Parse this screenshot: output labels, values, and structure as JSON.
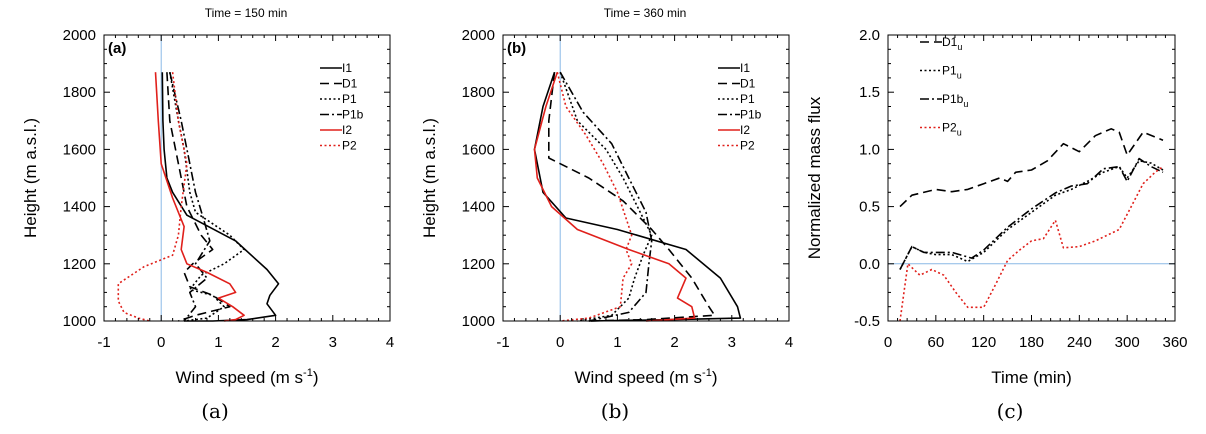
{
  "captions": [
    "(a)",
    "(b)",
    "(c)"
  ],
  "chart_data": [
    {
      "type": "line",
      "title": "Time = 150 min",
      "panel_label": "(a)",
      "xlabel": "Wind speed (m s",
      "xlabel_sup": "-1",
      "xlabel_tail": ")",
      "ylabel": "Height (m a.s.l.)",
      "xlim": [
        -1,
        4
      ],
      "ylim": [
        1000,
        2000
      ],
      "xticks": [
        -1,
        0,
        1,
        2,
        3,
        4
      ],
      "yticks": [
        1000,
        1200,
        1400,
        1600,
        1800,
        2000
      ],
      "zero_line": "x=0",
      "legend_position": "top-right",
      "series": [
        {
          "name": "I1",
          "color": "#000000",
          "dash": "solid",
          "x": [
            0.02,
            0.03,
            0.05,
            0.1,
            0.2,
            0.45,
            1.3,
            1.85,
            2.05,
            1.9,
            1.85,
            2.0,
            1.5,
            0.9,
            0.4
          ],
          "y": [
            1870,
            1700,
            1600,
            1500,
            1450,
            1370,
            1280,
            1180,
            1130,
            1090,
            1060,
            1020,
            1005,
            1000,
            1000
          ]
        },
        {
          "name": "D1",
          "color": "#000000",
          "dash": "dash",
          "x": [
            0.1,
            0.15,
            0.3,
            0.45,
            0.7,
            0.9,
            0.55,
            0.4,
            0.5,
            0.9,
            1.2,
            0.6,
            0.3
          ],
          "y": [
            1870,
            1700,
            1550,
            1400,
            1300,
            1250,
            1200,
            1170,
            1120,
            1090,
            1050,
            1020,
            1000
          ]
        },
        {
          "name": "P1",
          "color": "#000000",
          "dash": "dot",
          "x": [
            0.15,
            0.3,
            0.4,
            0.5,
            0.6,
            1.2,
            1.45,
            1.1,
            0.7,
            0.5,
            0.9,
            1.1,
            0.8,
            0.4
          ],
          "y": [
            1870,
            1700,
            1600,
            1450,
            1380,
            1300,
            1250,
            1200,
            1160,
            1110,
            1090,
            1050,
            1010,
            1000
          ]
        },
        {
          "name": "P1b",
          "color": "#000000",
          "dash": "dashdot",
          "x": [
            0.15,
            0.35,
            0.5,
            0.6,
            0.75,
            0.85,
            0.6,
            0.8,
            0.5,
            0.6,
            0.4
          ],
          "y": [
            1870,
            1700,
            1550,
            1450,
            1350,
            1280,
            1200,
            1150,
            1100,
            1050,
            1000
          ]
        },
        {
          "name": "I2",
          "color": "#e0201b",
          "dash": "solid",
          "x": [
            -0.1,
            -0.05,
            0.0,
            0.2,
            0.4,
            0.35,
            0.45,
            0.8,
            1.2,
            1.3,
            1.0,
            1.25,
            1.45,
            1.3,
            1.1
          ],
          "y": [
            1870,
            1700,
            1550,
            1430,
            1330,
            1250,
            1200,
            1170,
            1130,
            1100,
            1080,
            1050,
            1020,
            1005,
            1000
          ]
        },
        {
          "name": "P2",
          "color": "#e0201b",
          "dash": "dot",
          "x": [
            0.2,
            0.3,
            0.45,
            0.35,
            0.3,
            0.2,
            -0.3,
            -0.75,
            -0.75,
            -0.65,
            -0.4,
            -0.2
          ],
          "y": [
            1870,
            1700,
            1550,
            1400,
            1300,
            1230,
            1190,
            1130,
            1070,
            1030,
            1010,
            1000
          ]
        }
      ]
    },
    {
      "type": "line",
      "title": "Time = 360 min",
      "panel_label": "(b)",
      "xlabel": "Wind speed (m s",
      "xlabel_sup": "-1",
      "xlabel_tail": ")",
      "ylabel": "Height (m a.s.l.)",
      "xlim": [
        -1,
        4
      ],
      "ylim": [
        1000,
        2000
      ],
      "xticks": [
        -1,
        0,
        1,
        2,
        3,
        4
      ],
      "yticks": [
        1000,
        1200,
        1400,
        1600,
        1800,
        2000
      ],
      "zero_line": "x=0",
      "legend_position": "top-right",
      "series": [
        {
          "name": "I1",
          "color": "#000000",
          "dash": "solid",
          "x": [
            -0.1,
            -0.3,
            -0.45,
            -0.3,
            0.1,
            1.0,
            2.2,
            2.8,
            3.1,
            3.15,
            2.0,
            0.5
          ],
          "y": [
            1870,
            1750,
            1600,
            1450,
            1360,
            1320,
            1250,
            1150,
            1050,
            1010,
            1005,
            1000
          ]
        },
        {
          "name": "D1",
          "color": "#000000",
          "dash": "dash",
          "x": [
            -0.1,
            -0.2,
            -0.2,
            0.5,
            1.1,
            1.6,
            1.9,
            2.3,
            2.6,
            2.7,
            1.5,
            0.5
          ],
          "y": [
            1870,
            1700,
            1570,
            1500,
            1420,
            1320,
            1250,
            1150,
            1050,
            1020,
            1005,
            1000
          ]
        },
        {
          "name": "P1",
          "color": "#000000",
          "dash": "dot",
          "x": [
            0.0,
            0.3,
            0.8,
            1.1,
            1.35,
            1.6,
            1.45,
            1.3,
            1.2,
            0.9,
            0.3
          ],
          "y": [
            1870,
            1700,
            1600,
            1500,
            1400,
            1300,
            1230,
            1150,
            1080,
            1020,
            1000
          ]
        },
        {
          "name": "P1b",
          "color": "#000000",
          "dash": "dashdot",
          "x": [
            0.0,
            0.4,
            0.9,
            1.2,
            1.5,
            1.6,
            1.55,
            1.5,
            1.2,
            0.5
          ],
          "y": [
            1870,
            1730,
            1620,
            1500,
            1380,
            1280,
            1200,
            1100,
            1030,
            1000
          ]
        },
        {
          "name": "I2",
          "color": "#e0201b",
          "dash": "solid",
          "x": [
            -0.05,
            -0.25,
            -0.45,
            -0.4,
            -0.15,
            0.3,
            1.2,
            1.9,
            2.2,
            2.05,
            2.3,
            2.35,
            1.5
          ],
          "y": [
            1870,
            1750,
            1600,
            1500,
            1400,
            1320,
            1250,
            1200,
            1150,
            1080,
            1050,
            1010,
            1000
          ]
        },
        {
          "name": "P2",
          "color": "#e0201b",
          "dash": "dot",
          "x": [
            -0.05,
            0.1,
            0.45,
            0.75,
            1.0,
            1.25,
            1.15,
            1.25,
            1.1,
            1.05,
            0.5,
            0.0
          ],
          "y": [
            1870,
            1750,
            1650,
            1550,
            1450,
            1300,
            1250,
            1200,
            1150,
            1050,
            1010,
            1000
          ]
        }
      ]
    },
    {
      "type": "line",
      "title": "",
      "panel_label": "",
      "xlabel": "Time (min)",
      "ylabel": "Normalized mass flux",
      "xlim": [
        0,
        360
      ],
      "ylim": [
        -0.5,
        2.0
      ],
      "xticks": [
        0,
        60,
        120,
        180,
        240,
        300,
        360
      ],
      "yticks": [
        -0.5,
        0.0,
        0.5,
        1.0,
        1.5,
        2.0
      ],
      "ytick_labels": [
        "-0.5",
        "0.0",
        "0.5",
        "1.0",
        "1.5",
        "2.0"
      ],
      "zero_line": "y=0",
      "legend_position": "top-left",
      "series": [
        {
          "name": "D1",
          "subscript": "u",
          "color": "#000000",
          "dash": "dash",
          "x": [
            15,
            30,
            60,
            80,
            100,
            120,
            140,
            150,
            160,
            180,
            200,
            220,
            240,
            260,
            280,
            290,
            300,
            320,
            345
          ],
          "y": [
            0.5,
            0.6,
            0.65,
            0.63,
            0.65,
            0.7,
            0.75,
            0.72,
            0.8,
            0.82,
            0.9,
            1.05,
            0.98,
            1.12,
            1.18,
            1.15,
            0.95,
            1.15,
            1.08
          ]
        },
        {
          "name": "P1",
          "subscript": "u",
          "color": "#000000",
          "dash": "dot",
          "x": [
            15,
            30,
            45,
            60,
            80,
            100,
            120,
            150,
            180,
            210,
            230,
            250,
            270,
            290,
            300,
            315,
            330,
            345
          ],
          "y": [
            -0.05,
            0.15,
            0.1,
            0.08,
            0.08,
            0.02,
            0.1,
            0.3,
            0.45,
            0.6,
            0.65,
            0.72,
            0.8,
            0.85,
            0.75,
            0.9,
            0.88,
            0.82
          ]
        },
        {
          "name": "P1b",
          "subscript": "u",
          "color": "#000000",
          "dash": "dashdot",
          "x": [
            15,
            30,
            45,
            60,
            80,
            105,
            120,
            150,
            180,
            210,
            230,
            250,
            270,
            290,
            300,
            315,
            330,
            345
          ],
          "y": [
            -0.05,
            0.15,
            0.1,
            0.1,
            0.1,
            0.05,
            0.12,
            0.32,
            0.48,
            0.62,
            0.68,
            0.7,
            0.83,
            0.85,
            0.72,
            0.92,
            0.85,
            0.8
          ]
        },
        {
          "name": "P2",
          "subscript": "u",
          "color": "#e0201b",
          "dash": "dot",
          "x": [
            15,
            25,
            40,
            55,
            70,
            85,
            100,
            110,
            120,
            135,
            150,
            165,
            180,
            195,
            210,
            220,
            240,
            260,
            275,
            290,
            305,
            320,
            335,
            345
          ],
          "y": [
            -0.5,
            0.0,
            -0.1,
            -0.05,
            -0.1,
            -0.25,
            -0.38,
            -0.38,
            -0.38,
            -0.18,
            0.03,
            0.12,
            0.2,
            0.22,
            0.38,
            0.14,
            0.15,
            0.2,
            0.25,
            0.3,
            0.5,
            0.7,
            0.8,
            0.85
          ]
        }
      ]
    }
  ]
}
